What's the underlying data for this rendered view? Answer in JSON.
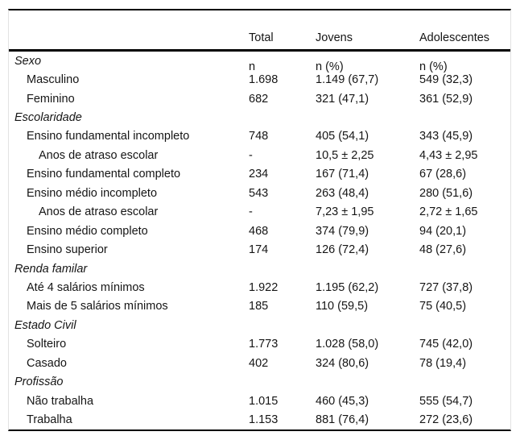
{
  "table": {
    "header": {
      "columns": [
        {
          "line1": "Total",
          "line2": "n"
        },
        {
          "line1": "Jovens",
          "line2": "n (%)"
        },
        {
          "line1": "Adolescentes",
          "line2": "n (%)"
        }
      ]
    },
    "rows": [
      {
        "type": "section",
        "label": "Sexo",
        "total": "",
        "jovens": "",
        "adolescentes": ""
      },
      {
        "type": "item",
        "label": "Masculino",
        "total": "1.698",
        "jovens": "1.149 (67,7)",
        "adolescentes": "549 (32,3)"
      },
      {
        "type": "item",
        "label": "Feminino",
        "total": "682",
        "jovens": "321 (47,1)",
        "adolescentes": "361 (52,9)"
      },
      {
        "type": "section",
        "label": "Escolaridade",
        "total": "",
        "jovens": "",
        "adolescentes": ""
      },
      {
        "type": "item",
        "label": "Ensino fundamental incompleto",
        "total": "748",
        "jovens": "405 (54,1)",
        "adolescentes": "343 (45,9)"
      },
      {
        "type": "subitem",
        "label": "Anos de atraso escolar",
        "total": "-",
        "jovens": "10,5 ± 2,25",
        "adolescentes": "4,43 ± 2,95"
      },
      {
        "type": "item",
        "label": "Ensino fundamental completo",
        "total": "234",
        "jovens": "167 (71,4)",
        "adolescentes": "67 (28,6)"
      },
      {
        "type": "item",
        "label": "Ensino médio incompleto",
        "total": "543",
        "jovens": "263 (48,4)",
        "adolescentes": "280 (51,6)"
      },
      {
        "type": "subitem",
        "label": "Anos de atraso escolar",
        "total": "-",
        "jovens": "7,23 ± 1,95",
        "adolescentes": "2,72 ± 1,65"
      },
      {
        "type": "item",
        "label": "Ensino médio completo",
        "total": "468",
        "jovens": "374 (79,9)",
        "adolescentes": "94 (20,1)"
      },
      {
        "type": "item",
        "label": "Ensino superior",
        "total": "174",
        "jovens": "126 (72,4)",
        "adolescentes": "48 (27,6)"
      },
      {
        "type": "section",
        "label": "Renda familar",
        "total": "",
        "jovens": "",
        "adolescentes": ""
      },
      {
        "type": "item",
        "label": "Até 4 salários mínimos",
        "total": "1.922",
        "jovens": "1.195 (62,2)",
        "adolescentes": "727 (37,8)"
      },
      {
        "type": "item",
        "label": "Mais de 5 salários mínimos",
        "total": "185",
        "jovens": "110 (59,5)",
        "adolescentes": "75 (40,5)"
      },
      {
        "type": "section",
        "label": "Estado Civil",
        "total": "",
        "jovens": "",
        "adolescentes": ""
      },
      {
        "type": "item",
        "label": "Solteiro",
        "total": "1.773",
        "jovens": "1.028 (58,0)",
        "adolescentes": "745 (42,0)"
      },
      {
        "type": "item",
        "label": "Casado",
        "total": "402",
        "jovens": "324 (80,6)",
        "adolescentes": "78 (19,4)"
      },
      {
        "type": "section",
        "label": "Profissão",
        "total": "",
        "jovens": "",
        "adolescentes": ""
      },
      {
        "type": "item",
        "label": "Não trabalha",
        "total": "1.015",
        "jovens": "460 (45,3)",
        "adolescentes": "555 (54,7)"
      },
      {
        "type": "item",
        "label": "Trabalha",
        "total": "1.153",
        "jovens": "881 (76,4)",
        "adolescentes": "272 (23,6)"
      }
    ]
  }
}
